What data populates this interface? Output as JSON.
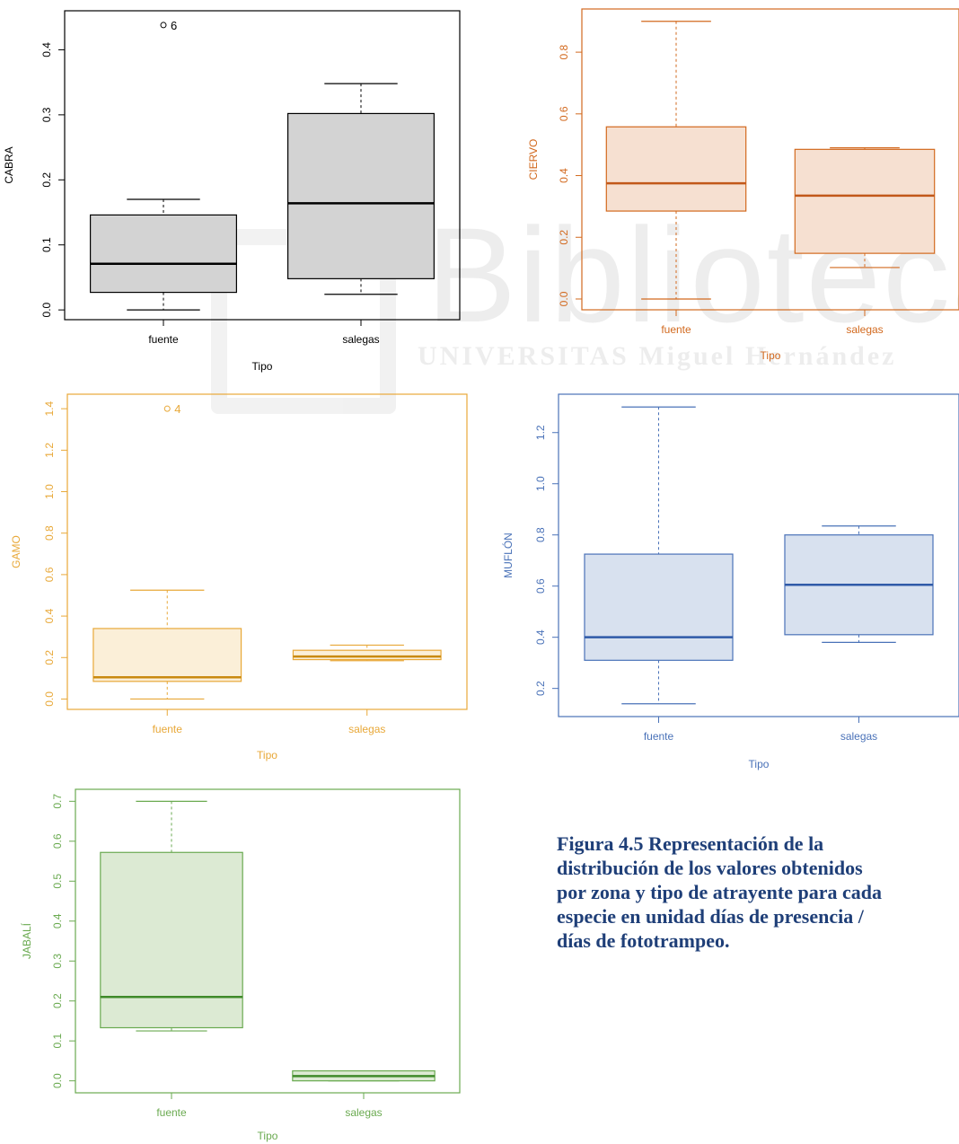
{
  "watermark": {
    "big_text": "Biblioteca",
    "small_text": "UNIVERSITAS Miguel Hernández"
  },
  "caption": "Figura 4.5 Representación de la\ndistribución de los valores obtenidos\npor zona y tipo de atrayente para cada\nespecie en unidad días de presencia /\ndías de fototrampeo.",
  "chart_data": [
    {
      "id": "cabra",
      "type": "boxplot",
      "ylabel": "CABRA",
      "xlabel": "Tipo",
      "categories": [
        "fuente",
        "salegas"
      ],
      "ylim": [
        -0.015,
        0.46
      ],
      "yticks": [
        0.0,
        0.1,
        0.2,
        0.3,
        0.4
      ],
      "yticklabels": [
        "0.0",
        "0.1",
        "0.2",
        "0.3",
        "0.4"
      ],
      "colors": {
        "stroke": "#000000",
        "fill": "#d3d3d3",
        "median": "#000000",
        "frame": "#000000",
        "text": "#000000"
      },
      "boxes": [
        {
          "min": 0.0,
          "q1": 0.027,
          "median": 0.071,
          "q3": 0.146,
          "max": 0.17,
          "outliers": [
            {
              "value": 0.438,
              "label": "6"
            }
          ]
        },
        {
          "min": 0.024,
          "q1": 0.048,
          "median": 0.164,
          "q3": 0.302,
          "max": 0.348,
          "outliers": []
        }
      ]
    },
    {
      "id": "ciervo",
      "type": "boxplot",
      "ylabel": "CIERVO",
      "xlabel": "Tipo",
      "categories": [
        "fuente",
        "salegas"
      ],
      "ylim": [
        -0.035,
        0.94
      ],
      "yticks": [
        0.0,
        0.2,
        0.4,
        0.6,
        0.8
      ],
      "yticklabels": [
        "0.0",
        "0.2",
        "0.4",
        "0.6",
        "0.8"
      ],
      "colors": {
        "stroke": "#d2691e",
        "fill": "#f6e0d1",
        "median": "#c2581a",
        "frame": "#d2691e",
        "text": "#d2691e"
      },
      "boxes": [
        {
          "min": 0.0,
          "q1": 0.285,
          "median": 0.375,
          "q3": 0.558,
          "max": 0.9,
          "outliers": []
        },
        {
          "min": 0.102,
          "q1": 0.148,
          "median": 0.335,
          "q3": 0.485,
          "max": 0.49,
          "outliers": []
        }
      ]
    },
    {
      "id": "gamo",
      "type": "boxplot",
      "ylabel": "GAMO",
      "xlabel": "Tipo",
      "categories": [
        "fuente",
        "salegas"
      ],
      "ylim": [
        -0.05,
        1.47
      ],
      "yticks": [
        0.0,
        0.2,
        0.4,
        0.6,
        0.8,
        1.0,
        1.2,
        1.4
      ],
      "yticklabels": [
        "0.0",
        "0.2",
        "0.4",
        "0.6",
        "0.8",
        "1.0",
        "1.2",
        "1.4"
      ],
      "colors": {
        "stroke": "#e8a838",
        "fill": "#fbefd8",
        "median": "#c98a10",
        "frame": "#e8a838",
        "text": "#e8a838"
      },
      "boxes": [
        {
          "min": 0.0,
          "q1": 0.085,
          "median": 0.105,
          "q3": 0.34,
          "max": 0.525,
          "outliers": [
            {
              "value": 1.4,
              "label": "4"
            }
          ]
        },
        {
          "min": 0.185,
          "q1": 0.19,
          "median": 0.205,
          "q3": 0.235,
          "max": 0.26,
          "outliers": []
        }
      ]
    },
    {
      "id": "muflon",
      "type": "boxplot",
      "ylabel": "MUFLÓN",
      "xlabel": "Tipo",
      "categories": [
        "fuente",
        "salegas"
      ],
      "ylim": [
        0.09,
        1.35
      ],
      "yticks": [
        0.2,
        0.4,
        0.6,
        0.8,
        1.0,
        1.2
      ],
      "yticklabels": [
        "0.2",
        "0.4",
        "0.6",
        "0.8",
        "1.0",
        "1.2"
      ],
      "colors": {
        "stroke": "#4a72b8",
        "fill": "#d8e1ef",
        "median": "#2f5aa8",
        "frame": "#4a72b8",
        "text": "#4a72b8"
      },
      "boxes": [
        {
          "min": 0.14,
          "q1": 0.31,
          "median": 0.4,
          "q3": 0.725,
          "max": 1.3,
          "outliers": []
        },
        {
          "min": 0.38,
          "q1": 0.41,
          "median": 0.605,
          "q3": 0.8,
          "max": 0.835,
          "outliers": []
        }
      ]
    },
    {
      "id": "jabali",
      "type": "boxplot",
      "ylabel": "JABALÍ",
      "xlabel": "Tipo",
      "categories": [
        "fuente",
        "salegas"
      ],
      "ylim": [
        -0.03,
        0.73
      ],
      "yticks": [
        0.0,
        0.1,
        0.2,
        0.3,
        0.4,
        0.5,
        0.6,
        0.7
      ],
      "yticklabels": [
        "0.0",
        "0.1",
        "0.2",
        "0.3",
        "0.4",
        "0.5",
        "0.6",
        "0.7"
      ],
      "colors": {
        "stroke": "#6aaa50",
        "fill": "#dcead3",
        "median": "#3f8a2a",
        "frame": "#6aaa50",
        "text": "#6aaa50"
      },
      "boxes": [
        {
          "min": 0.125,
          "q1": 0.133,
          "median": 0.21,
          "q3": 0.572,
          "max": 0.7,
          "outliers": []
        },
        {
          "min": 0.0,
          "q1": 0.0,
          "median": 0.012,
          "q3": 0.025,
          "max": 0.025,
          "outliers": []
        }
      ]
    }
  ]
}
